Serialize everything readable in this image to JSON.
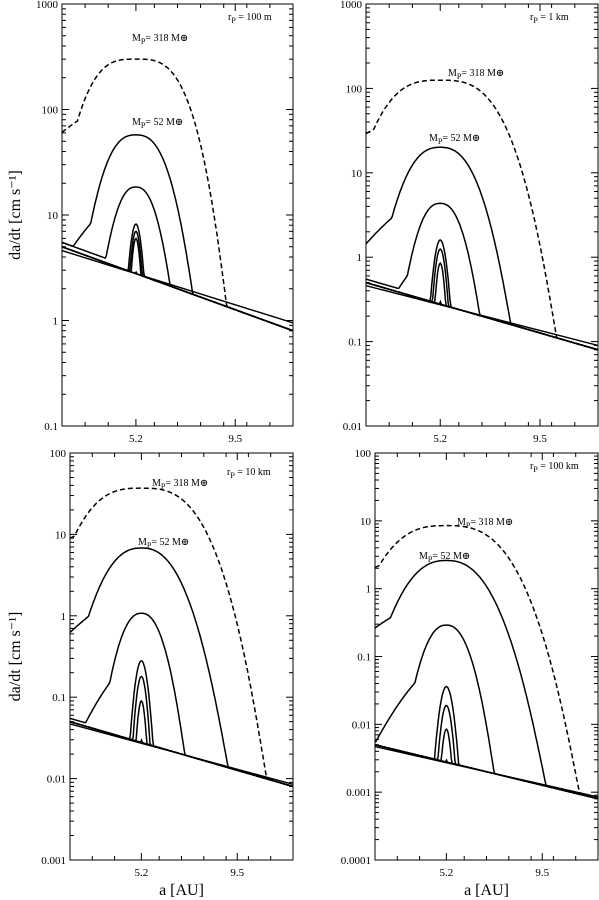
{
  "chart_data": [
    {
      "type": "line",
      "panel_label": "r_P = 100 m",
      "label": {
        "base": "r",
        "sub": "P",
        "rest": " = 100 m"
      },
      "y_log": true,
      "ylim": [
        0.1,
        1000
      ],
      "y_ticks": [
        "0.1",
        "1",
        "10",
        "100",
        "1000"
      ],
      "x_ticks": [
        "5.2",
        "9.5"
      ],
      "ylabel": "da/dt [cm s⁻¹]",
      "xlabel": "",
      "annotations": [
        {
          "base": "M",
          "sub": "P",
          "rest": "= 318 M⊕"
        },
        {
          "base": "M",
          "sub": "P",
          "rest": "= 52 M⊕"
        }
      ],
      "baseline": {
        "x": [
          2.0,
          12.0
        ],
        "y": [
          5.0,
          0.8
        ]
      },
      "baseline2": {
        "x": [
          2.0,
          12.0
        ],
        "y": [
          4.6,
          0.95
        ]
      },
      "curves": [
        {
          "mass": "318",
          "dashed": true,
          "peak": 300,
          "width": 2.3,
          "p": 3.2,
          "tail": 1.2
        },
        {
          "mass": "52",
          "dashed": false,
          "peak": 57,
          "width": 1.5,
          "p": 2.6,
          "tail": 0.9
        },
        {
          "mass": "",
          "dashed": false,
          "peak": 18,
          "width": 1.05,
          "p": 2.4,
          "tail": 0.85
        },
        {
          "mass": "",
          "dashed": false,
          "peak": 8.2,
          "width": 0.33,
          "p": 2.0,
          "tail": 0
        },
        {
          "mass": "",
          "dashed": false,
          "peak": 7.0,
          "width": 0.28,
          "p": 2.0,
          "tail": 0
        },
        {
          "mass": "",
          "dashed": false,
          "peak": 6.0,
          "width": 0.24,
          "p": 2.0,
          "tail": 0
        },
        {
          "mass": "",
          "dashed": false,
          "peak": 2.9,
          "width": 0.09,
          "p": 2.0,
          "tail": 0
        }
      ]
    },
    {
      "type": "line",
      "panel_label": "r_P = 1 km",
      "label": {
        "base": "r",
        "sub": "P",
        "rest": " = 1 km"
      },
      "y_log": true,
      "ylim": [
        0.01,
        1000
      ],
      "y_ticks": [
        "0.01",
        "0.1",
        "1",
        "10",
        "100",
        "1000"
      ],
      "x_ticks": [
        "5.2",
        "9.5"
      ],
      "ylabel": "",
      "xlabel": "",
      "annotations": [
        {
          "base": "M",
          "sub": "P",
          "rest": "= 318 M⊕"
        },
        {
          "base": "M",
          "sub": "P",
          "rest": "= 52 M⊕"
        }
      ],
      "baseline": {
        "x": [
          2.0,
          12.0
        ],
        "y": [
          0.5,
          0.08
        ]
      },
      "baseline2": {
        "x": [
          2.0,
          12.0
        ],
        "y": [
          0.46,
          0.09
        ]
      },
      "curves": [
        {
          "mass": "318",
          "dashed": true,
          "peak": 125,
          "width": 2.6,
          "p": 3.0,
          "tail": 0.14
        },
        {
          "mass": "52",
          "dashed": false,
          "peak": 20,
          "width": 1.6,
          "p": 2.5,
          "tail": 0.1
        },
        {
          "mass": "",
          "dashed": false,
          "peak": 4.3,
          "width": 1.05,
          "p": 2.4,
          "tail": 0.09
        },
        {
          "mass": "",
          "dashed": false,
          "peak": 1.6,
          "width": 0.33,
          "p": 2.0,
          "tail": 0
        },
        {
          "mass": "",
          "dashed": false,
          "peak": 1.25,
          "width": 0.28,
          "p": 2.0,
          "tail": 0
        },
        {
          "mass": "",
          "dashed": false,
          "peak": 0.85,
          "width": 0.22,
          "p": 2.0,
          "tail": 0
        },
        {
          "mass": "",
          "dashed": false,
          "peak": 0.3,
          "width": 0.08,
          "p": 2.0,
          "tail": 0
        }
      ]
    },
    {
      "type": "line",
      "panel_label": "r_P = 10 km",
      "label": {
        "base": "r",
        "sub": "P",
        "rest": " = 10 km"
      },
      "y_log": true,
      "ylim": [
        0.001,
        100
      ],
      "y_ticks": [
        "0.001",
        "0.01",
        "0.1",
        "1",
        "10",
        "100"
      ],
      "x_ticks": [
        "5.2",
        "9.5"
      ],
      "ylabel": "da/dt [cm s⁻¹]",
      "xlabel": "a [AU]",
      "annotations": [
        {
          "base": "M",
          "sub": "P",
          "rest": "= 318 M⊕"
        },
        {
          "base": "M",
          "sub": "P",
          "rest": "= 52 M⊕"
        }
      ],
      "baseline": {
        "x": [
          2.0,
          12.0
        ],
        "y": [
          0.05,
          0.008
        ]
      },
      "baseline2": {
        "x": [
          2.0,
          12.0
        ],
        "y": [
          0.047,
          0.0085
        ]
      },
      "curves": [
        {
          "mass": "318",
          "dashed": true,
          "peak": 37,
          "width": 2.7,
          "p": 2.9,
          "tail": 0.015
        },
        {
          "mass": "52",
          "dashed": false,
          "peak": 6.8,
          "width": 1.8,
          "p": 2.4,
          "tail": 0.01
        },
        {
          "mass": "",
          "dashed": false,
          "peak": 1.07,
          "width": 1.05,
          "p": 2.3,
          "tail": 0.009
        },
        {
          "mass": "",
          "dashed": false,
          "peak": 0.28,
          "width": 0.34,
          "p": 2.0,
          "tail": 0
        },
        {
          "mass": "",
          "dashed": false,
          "peak": 0.18,
          "width": 0.28,
          "p": 2.0,
          "tail": 0
        },
        {
          "mass": "",
          "dashed": false,
          "peak": 0.09,
          "width": 0.22,
          "p": 2.0,
          "tail": 0
        },
        {
          "mass": "",
          "dashed": false,
          "peak": 0.03,
          "width": 0.08,
          "p": 2.0,
          "tail": 0
        }
      ]
    },
    {
      "type": "line",
      "panel_label": "r_P = 100 km",
      "label": {
        "base": "r",
        "sub": "P",
        "rest": " = 100 km"
      },
      "y_log": true,
      "ylim": [
        0.0001,
        100
      ],
      "y_ticks": [
        "0.0001",
        "0.001",
        "0.01",
        "0.1",
        "1",
        "10",
        "100"
      ],
      "x_ticks": [
        "5.2",
        "9.5"
      ],
      "ylabel": "",
      "xlabel": "a [AU]",
      "annotations": [
        {
          "base": "M",
          "sub": "P",
          "rest": "= 318 M⊕"
        },
        {
          "base": "M",
          "sub": "P",
          "rest": "= 52 M⊕"
        }
      ],
      "baseline": {
        "x": [
          2.0,
          12.0
        ],
        "y": [
          0.005,
          0.0008
        ]
      },
      "baseline2": {
        "x": [
          2.0,
          12.0
        ],
        "y": [
          0.0047,
          0.00085
        ]
      },
      "curves": [
        {
          "mass": "318",
          "dashed": true,
          "peak": 8.5,
          "width": 2.7,
          "p": 2.8,
          "tail": 0.0016
        },
        {
          "mass": "52",
          "dashed": false,
          "peak": 2.6,
          "width": 1.9,
          "p": 2.4,
          "tail": 0.0011
        },
        {
          "mass": "",
          "dashed": false,
          "peak": 0.29,
          "width": 1.05,
          "p": 2.3,
          "tail": 0.0009
        },
        {
          "mass": "",
          "dashed": false,
          "peak": 0.036,
          "width": 0.34,
          "p": 2.0,
          "tail": 0
        },
        {
          "mass": "",
          "dashed": false,
          "peak": 0.019,
          "width": 0.28,
          "p": 2.0,
          "tail": 0
        },
        {
          "mass": "",
          "dashed": false,
          "peak": 0.0085,
          "width": 0.22,
          "p": 2.0,
          "tail": 0
        },
        {
          "mass": "",
          "dashed": false,
          "peak": 0.003,
          "width": 0.08,
          "p": 2.0,
          "tail": 0
        }
      ]
    }
  ]
}
